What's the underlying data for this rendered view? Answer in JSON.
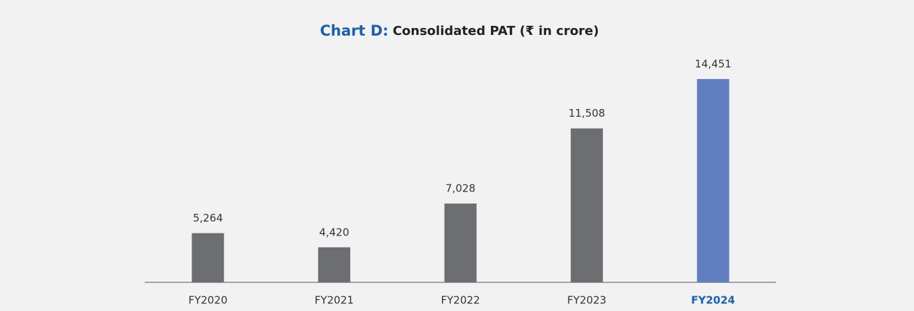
{
  "chart_data": {
    "type": "bar",
    "title_prefix": "Chart D:",
    "title": "Consolidated PAT (₹ in crore)",
    "categories": [
      "FY2020",
      "FY2021",
      "FY2022",
      "FY2023",
      "FY2024"
    ],
    "values": [
      5264,
      4420,
      7028,
      11508,
      14451
    ],
    "value_labels": [
      "5,264",
      "4,420",
      "7,028",
      "11,508",
      "14,451"
    ],
    "colors": [
      "#6d6e71",
      "#6d6e71",
      "#6d6e71",
      "#6d6e71",
      "#607dbf"
    ],
    "highlight_color": "#1f5fa8",
    "highlight_index": 4,
    "ylim": [
      2330,
      15830
    ],
    "grid": false
  }
}
